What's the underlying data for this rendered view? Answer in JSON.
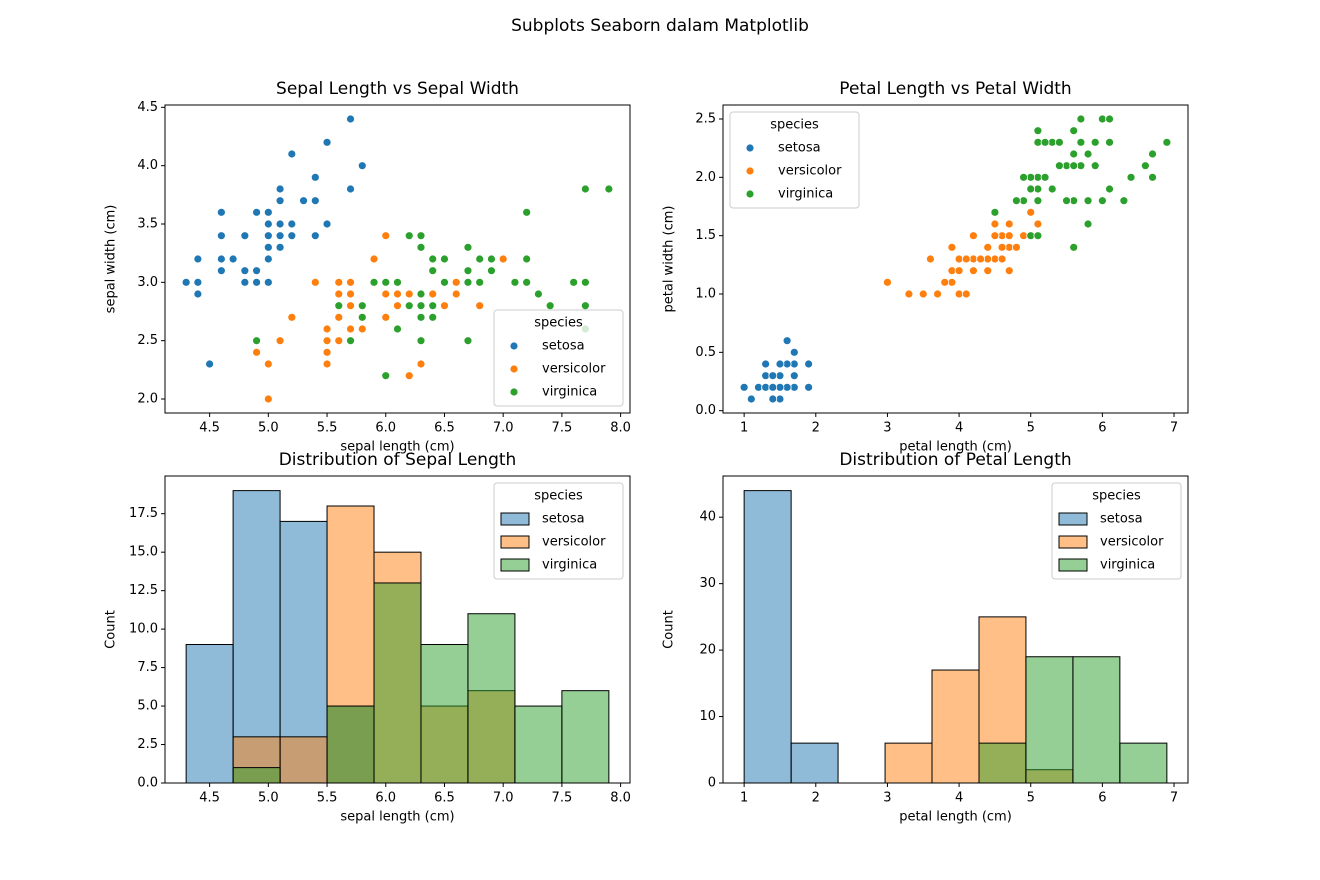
{
  "title": "Subplots Seaborn dalam Matplotlib",
  "chart_data": [
    {
      "type": "scatter",
      "title": "Sepal Length vs Sepal Width",
      "xlabel": "sepal length (cm)",
      "ylabel": "sepal width (cm)",
      "xlim": [
        4.12,
        8.08
      ],
      "xticks": [
        4.5,
        {
          "value": 5,
          "label": "5.0"
        },
        5.5,
        {
          "value": 6,
          "label": "6.0"
        },
        6.5,
        {
          "value": 7,
          "label": "7.0"
        },
        7.5,
        {
          "value": 8,
          "label": "8.0"
        }
      ],
      "ylim": [
        1.88,
        4.52
      ],
      "yticks": [
        {
          "value": 2,
          "label": "2.0"
        },
        2.5,
        {
          "value": 3,
          "label": "3.0"
        },
        3.5,
        {
          "value": 4,
          "label": "4.0"
        },
        4.5
      ],
      "legend_title": "species",
      "legend": "lower right",
      "series": [
        {
          "name": "setosa",
          "color": "#1f77b4",
          "x": [
            5.1,
            4.9,
            4.7,
            4.6,
            5.0,
            5.4,
            4.6,
            5.0,
            4.4,
            4.9,
            5.4,
            4.8,
            4.8,
            4.3,
            5.8,
            5.7,
            5.4,
            5.1,
            5.7,
            5.1,
            5.4,
            5.1,
            4.6,
            5.1,
            4.8,
            5.0,
            5.0,
            5.2,
            5.2,
            4.7,
            4.8,
            5.4,
            5.2,
            5.5,
            4.9,
            5.0,
            5.5,
            4.9,
            4.4,
            5.1,
            5.0,
            4.5,
            4.4,
            5.0,
            5.1,
            4.8,
            5.1,
            4.6,
            5.3,
            5.0
          ],
          "values": [
            3.5,
            3.0,
            3.2,
            3.1,
            3.6,
            3.9,
            3.4,
            3.4,
            2.9,
            3.1,
            3.7,
            3.4,
            3.0,
            3.0,
            4.0,
            4.4,
            3.9,
            3.5,
            3.8,
            3.8,
            3.4,
            3.7,
            3.6,
            3.3,
            3.4,
            3.0,
            3.4,
            3.5,
            3.4,
            3.2,
            3.1,
            3.4,
            4.1,
            4.2,
            3.1,
            3.2,
            3.5,
            3.6,
            3.0,
            3.4,
            3.5,
            2.3,
            3.2,
            3.5,
            3.8,
            3.0,
            3.8,
            3.2,
            3.7,
            3.3
          ]
        },
        {
          "name": "versicolor",
          "color": "#ff7f0e",
          "x": [
            7.0,
            6.4,
            6.9,
            5.5,
            6.5,
            5.7,
            6.3,
            4.9,
            6.6,
            5.2,
            5.0,
            5.9,
            6.0,
            6.1,
            5.6,
            6.7,
            5.6,
            5.8,
            6.2,
            5.6,
            5.9,
            6.1,
            6.3,
            6.1,
            6.4,
            6.6,
            6.8,
            6.7,
            6.0,
            5.7,
            5.5,
            5.5,
            5.8,
            6.0,
            5.4,
            6.0,
            6.7,
            6.3,
            5.6,
            5.5,
            5.5,
            6.1,
            5.8,
            5.0,
            5.6,
            5.7,
            5.7,
            6.2,
            5.1,
            5.7
          ],
          "values": [
            3.2,
            3.2,
            3.1,
            2.3,
            2.8,
            2.8,
            3.3,
            2.4,
            2.9,
            2.7,
            2.0,
            3.0,
            2.2,
            2.9,
            2.9,
            3.1,
            3.0,
            2.7,
            2.2,
            2.5,
            3.2,
            2.8,
            2.5,
            2.8,
            2.9,
            3.0,
            2.8,
            3.0,
            2.9,
            2.6,
            2.4,
            2.4,
            2.7,
            2.7,
            3.0,
            3.4,
            3.1,
            2.3,
            3.0,
            2.5,
            2.6,
            3.0,
            2.6,
            2.3,
            2.7,
            3.0,
            2.9,
            2.9,
            2.5,
            2.8
          ]
        },
        {
          "name": "virginica",
          "color": "#2ca02c",
          "x": [
            6.3,
            5.8,
            7.1,
            6.3,
            6.5,
            7.6,
            4.9,
            7.3,
            6.7,
            7.2,
            6.5,
            6.4,
            6.8,
            5.7,
            5.8,
            6.4,
            6.5,
            7.7,
            7.7,
            6.0,
            6.9,
            5.6,
            7.7,
            6.3,
            6.7,
            7.2,
            6.2,
            6.1,
            6.4,
            7.2,
            7.4,
            7.9,
            6.4,
            6.3,
            6.1,
            7.7,
            6.3,
            6.4,
            6.0,
            6.9,
            6.7,
            6.9,
            5.8,
            6.8,
            6.7,
            6.7,
            6.3,
            6.5,
            6.2,
            5.9
          ],
          "values": [
            3.3,
            2.7,
            3.0,
            2.9,
            3.0,
            3.0,
            2.5,
            2.9,
            2.5,
            3.6,
            3.2,
            2.7,
            3.0,
            2.5,
            2.8,
            3.2,
            3.0,
            3.8,
            2.6,
            2.2,
            3.2,
            2.8,
            2.8,
            2.7,
            3.3,
            3.2,
            2.8,
            3.0,
            2.8,
            3.0,
            2.8,
            3.8,
            2.8,
            2.8,
            2.6,
            3.0,
            3.4,
            3.1,
            3.0,
            3.1,
            3.1,
            3.1,
            2.7,
            3.2,
            3.3,
            3.0,
            2.5,
            3.0,
            3.4,
            3.0
          ]
        }
      ]
    },
    {
      "type": "scatter",
      "title": "Petal Length vs Petal Width",
      "xlabel": "petal length (cm)",
      "ylabel": "petal width (cm)",
      "xlim": [
        0.705,
        7.195
      ],
      "xticks": [
        1,
        2,
        3,
        4,
        5,
        6,
        7
      ],
      "ylim": [
        -0.02,
        2.62
      ],
      "yticks": [
        {
          "value": 0,
          "label": "0.0"
        },
        0.5,
        {
          "value": 1,
          "label": "1.0"
        },
        1.5,
        {
          "value": 2,
          "label": "2.0"
        },
        2.5
      ],
      "legend_title": "species",
      "legend": "upper left",
      "series": [
        {
          "name": "setosa",
          "color": "#1f77b4",
          "x": [
            1.4,
            1.4,
            1.3,
            1.5,
            1.4,
            1.7,
            1.4,
            1.5,
            1.4,
            1.5,
            1.5,
            1.6,
            1.4,
            1.1,
            1.2,
            1.5,
            1.3,
            1.4,
            1.7,
            1.5,
            1.7,
            1.5,
            1.0,
            1.7,
            1.9,
            1.6,
            1.6,
            1.5,
            1.4,
            1.6,
            1.6,
            1.5,
            1.5,
            1.4,
            1.5,
            1.2,
            1.3,
            1.4,
            1.3,
            1.5,
            1.3,
            1.3,
            1.3,
            1.6,
            1.9,
            1.4,
            1.6,
            1.4,
            1.5,
            1.4
          ],
          "values": [
            0.2,
            0.2,
            0.2,
            0.2,
            0.2,
            0.4,
            0.3,
            0.2,
            0.2,
            0.1,
            0.2,
            0.2,
            0.1,
            0.1,
            0.2,
            0.4,
            0.4,
            0.3,
            0.3,
            0.3,
            0.2,
            0.4,
            0.2,
            0.5,
            0.2,
            0.2,
            0.4,
            0.2,
            0.2,
            0.2,
            0.2,
            0.4,
            0.1,
            0.2,
            0.2,
            0.2,
            0.2,
            0.1,
            0.2,
            0.2,
            0.3,
            0.3,
            0.2,
            0.6,
            0.4,
            0.3,
            0.2,
            0.2,
            0.2,
            0.2
          ]
        },
        {
          "name": "versicolor",
          "color": "#ff7f0e",
          "x": [
            4.7,
            4.5,
            4.9,
            4.0,
            4.6,
            4.5,
            4.7,
            3.3,
            4.6,
            3.9,
            3.5,
            4.2,
            4.0,
            4.7,
            3.6,
            4.4,
            4.5,
            4.1,
            4.5,
            3.9,
            4.8,
            4.0,
            4.9,
            4.7,
            4.3,
            4.4,
            4.8,
            5.0,
            4.5,
            3.5,
            3.8,
            3.7,
            3.9,
            5.1,
            4.5,
            4.5,
            4.7,
            4.4,
            4.1,
            4.0,
            4.4,
            4.6,
            4.0,
            3.3,
            4.2,
            4.2,
            4.2,
            4.3,
            3.0,
            4.1
          ],
          "values": [
            1.4,
            1.5,
            1.5,
            1.3,
            1.5,
            1.3,
            1.6,
            1.0,
            1.3,
            1.4,
            1.0,
            1.5,
            1.0,
            1.4,
            1.3,
            1.4,
            1.5,
            1.0,
            1.5,
            1.1,
            1.8,
            1.3,
            1.5,
            1.2,
            1.3,
            1.4,
            1.4,
            1.7,
            1.5,
            1.0,
            1.1,
            1.0,
            1.2,
            1.6,
            1.5,
            1.6,
            1.5,
            1.3,
            1.3,
            1.3,
            1.2,
            1.4,
            1.2,
            1.0,
            1.3,
            1.2,
            1.3,
            1.3,
            1.1,
            1.3
          ]
        },
        {
          "name": "virginica",
          "color": "#2ca02c",
          "x": [
            6.0,
            5.1,
            5.9,
            5.6,
            5.8,
            6.6,
            4.5,
            6.3,
            5.8,
            6.1,
            5.1,
            5.3,
            5.5,
            5.0,
            5.1,
            5.3,
            5.5,
            6.7,
            6.9,
            5.0,
            5.7,
            4.9,
            6.7,
            4.9,
            5.7,
            6.0,
            4.8,
            4.9,
            5.6,
            5.8,
            6.1,
            6.4,
            5.6,
            5.1,
            5.6,
            6.1,
            5.6,
            5.5,
            4.8,
            5.4,
            5.6,
            5.1,
            5.1,
            5.9,
            5.7,
            5.2,
            5.0,
            5.2,
            5.4,
            5.1
          ],
          "values": [
            2.5,
            1.9,
            2.1,
            1.8,
            2.2,
            2.1,
            1.7,
            1.8,
            1.8,
            2.5,
            2.0,
            1.9,
            2.1,
            2.0,
            2.4,
            2.3,
            1.8,
            2.2,
            2.3,
            1.5,
            2.3,
            2.0,
            2.0,
            1.8,
            2.1,
            1.8,
            1.8,
            1.8,
            2.1,
            1.6,
            1.9,
            2.0,
            2.2,
            1.5,
            1.4,
            2.3,
            2.4,
            1.8,
            1.8,
            2.1,
            2.4,
            2.3,
            1.9,
            2.3,
            2.5,
            2.3,
            1.9,
            2.0,
            2.3,
            1.8
          ]
        }
      ]
    },
    {
      "type": "histogram",
      "title": "Distribution of Sepal Length",
      "xlabel": "sepal length (cm)",
      "ylabel": "Count",
      "xlim": [
        4.12,
        8.08
      ],
      "xticks": [
        4.5,
        {
          "value": 5,
          "label": "5.0"
        },
        5.5,
        {
          "value": 6,
          "label": "6.0"
        },
        6.5,
        {
          "value": 7,
          "label": "7.0"
        },
        7.5,
        {
          "value": 8,
          "label": "8.0"
        }
      ],
      "ylim": [
        0,
        19.95
      ],
      "yticks": [
        {
          "value": 0,
          "label": "0.0"
        },
        2.5,
        {
          "value": 5,
          "label": "5.0"
        },
        7.5,
        {
          "value": 10,
          "label": "10.0"
        },
        12.5,
        {
          "value": 15,
          "label": "15.0"
        },
        17.5
      ],
      "legend_title": "species",
      "legend": "upper right",
      "bins": [
        4.3,
        4.7,
        5.1,
        5.5,
        5.9,
        6.3,
        6.7,
        7.1,
        7.5,
        7.9
      ],
      "series": [
        {
          "name": "setosa",
          "color": "#1f77b4",
          "values": [
            9,
            19,
            17,
            5,
            0,
            0,
            0,
            0,
            0
          ]
        },
        {
          "name": "versicolor",
          "color": "#ff7f0e",
          "values": [
            0,
            3,
            3,
            18,
            15,
            5,
            6,
            0,
            0
          ]
        },
        {
          "name": "virginica",
          "color": "#2ca02c",
          "values": [
            0,
            1,
            0,
            5,
            13,
            9,
            11,
            5,
            6
          ]
        }
      ]
    },
    {
      "type": "histogram",
      "title": "Distribution of Petal Length",
      "xlabel": "petal length (cm)",
      "ylabel": "Count",
      "xlim": [
        0.705,
        7.195
      ],
      "xticks": [
        1,
        2,
        3,
        4,
        5,
        6,
        7
      ],
      "ylim": [
        0,
        46.2
      ],
      "yticks": [
        0,
        10,
        20,
        30,
        40
      ],
      "legend_title": "species",
      "legend": "upper right",
      "bins": [
        1.0,
        1.656,
        2.311,
        2.967,
        3.622,
        4.278,
        4.933,
        5.589,
        6.244,
        6.9
      ],
      "series": [
        {
          "name": "setosa",
          "color": "#1f77b4",
          "values": [
            44,
            6,
            0,
            0,
            0,
            0,
            0,
            0,
            0
          ]
        },
        {
          "name": "versicolor",
          "color": "#ff7f0e",
          "values": [
            0,
            0,
            0,
            6,
            17,
            25,
            2,
            0,
            0
          ]
        },
        {
          "name": "virginica",
          "color": "#2ca02c",
          "values": [
            0,
            0,
            0,
            0,
            0,
            6,
            19,
            19,
            6
          ]
        }
      ]
    }
  ]
}
